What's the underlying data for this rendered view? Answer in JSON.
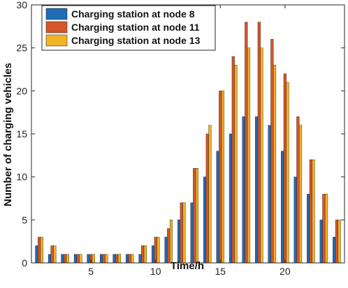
{
  "chart_data": {
    "type": "bar",
    "xlabel": "Time/h",
    "ylabel": "Number of charging vehicles",
    "x": [
      1,
      2,
      3,
      4,
      5,
      6,
      7,
      8,
      9,
      10,
      11,
      12,
      13,
      14,
      15,
      16,
      17,
      18,
      19,
      20,
      21,
      22,
      23,
      24
    ],
    "x_ticks": [
      5,
      10,
      15,
      20
    ],
    "y_ticks": [
      0,
      5,
      10,
      15,
      20,
      25,
      30
    ],
    "xlim": [
      0.4,
      24.6
    ],
    "ylim": [
      0,
      30
    ],
    "legend_position": "top-left",
    "grid": false,
    "series": [
      {
        "name": "Charging station at node 8",
        "color": "#1F6BB5",
        "values": [
          2,
          1,
          1,
          1,
          1,
          1,
          1,
          1,
          1,
          2,
          3,
          5,
          7,
          10,
          13,
          15,
          17,
          17,
          16,
          13,
          10,
          8,
          5,
          3
        ]
      },
      {
        "name": "Charging station at node 11",
        "color": "#D4562A",
        "values": [
          3,
          2,
          1,
          1,
          1,
          1,
          1,
          1,
          2,
          3,
          4,
          7,
          11,
          15,
          20,
          24,
          28,
          28,
          26,
          22,
          17,
          12,
          8,
          5
        ]
      },
      {
        "name": "Charging station at node 13",
        "color": "#F0B323",
        "values": [
          3,
          2,
          1,
          1,
          1,
          1,
          1,
          1,
          2,
          3,
          5,
          7,
          11,
          16,
          20,
          23,
          25,
          25,
          23,
          21,
          16,
          12,
          8,
          5
        ]
      }
    ]
  }
}
